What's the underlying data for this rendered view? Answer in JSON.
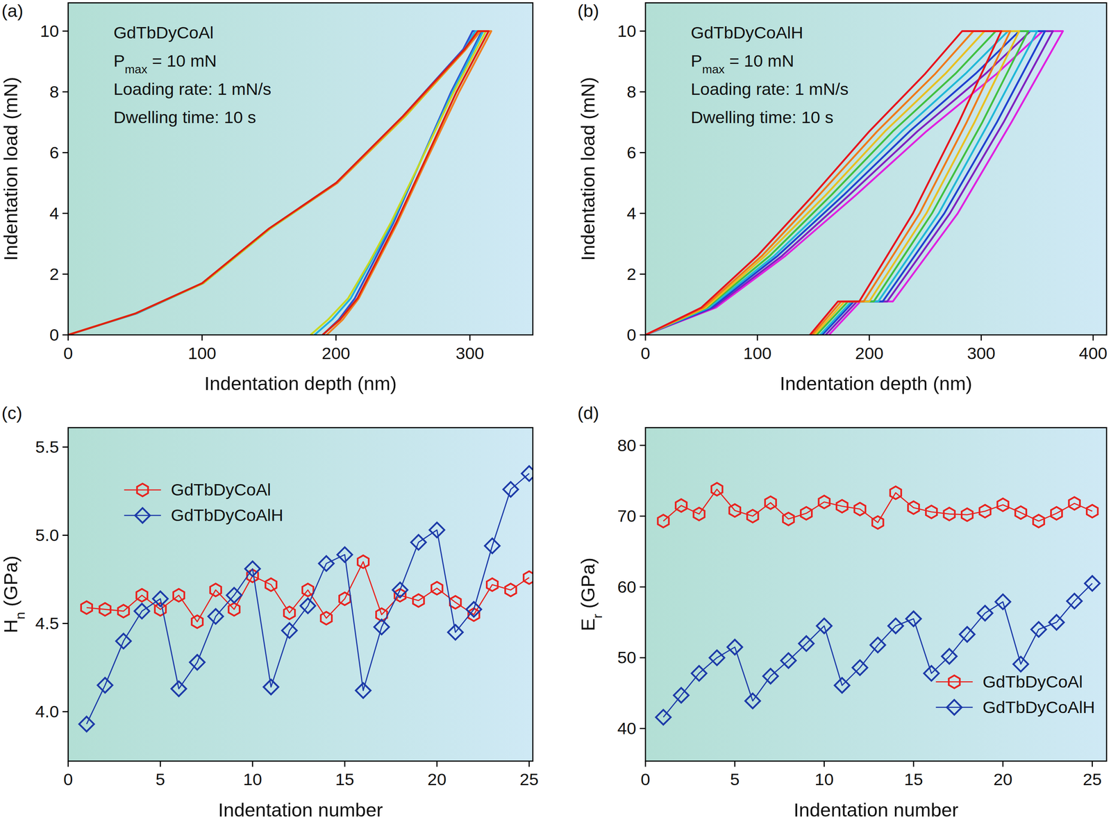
{
  "chart_data": [
    {
      "type": "line",
      "panel_label": "(a)",
      "xlabel": "Indentation depth (nm)",
      "ylabel": "Indentation load (mN)",
      "xlim": [
        0,
        347
      ],
      "ylim": [
        0,
        10.93
      ],
      "xticks": [
        0,
        100,
        200,
        300
      ],
      "yticks": [
        0,
        2,
        4,
        6,
        8,
        10
      ],
      "annotations": [
        [
          {
            "text": "GdTbDyCoAl"
          }
        ],
        [
          {
            "text": "P"
          },
          {
            "text": "max",
            "sub": true
          },
          {
            "text": " = 10 mN"
          }
        ],
        [
          {
            "text": "Loading rate: 1 mN/s"
          }
        ],
        [
          {
            "text": "Dwelling time: 10 s"
          }
        ]
      ],
      "series": [
        {
          "color": "#3050d0",
          "x": [
            0,
            50,
            100,
            150,
            200,
            250,
            295,
            302,
            309,
            286,
            262,
            243,
            228,
            214,
            202,
            190
          ],
          "values": [
            0,
            0.7,
            1.7,
            3.5,
            5.0,
            7.2,
            9.4,
            10,
            10,
            8.0,
            5.6,
            3.7,
            2.4,
            1.2,
            0.5,
            0
          ]
        },
        {
          "color": "#20b0e0",
          "x": [
            0,
            51,
            101,
            151,
            201,
            251,
            296,
            304,
            310,
            287,
            262,
            242,
            226,
            211,
            197,
            184
          ],
          "values": [
            0,
            0.7,
            1.7,
            3.5,
            5.0,
            7.2,
            9.4,
            10,
            10,
            8.0,
            5.6,
            3.7,
            2.4,
            1.2,
            0.5,
            0
          ]
        },
        {
          "color": "#c8d820",
          "x": [
            0,
            50,
            101,
            151,
            201,
            252,
            297,
            306,
            312,
            288,
            262,
            241,
            225,
            209,
            194,
            181
          ],
          "values": [
            0,
            0.7,
            1.7,
            3.5,
            5.0,
            7.2,
            9.4,
            10,
            10,
            8.0,
            5.6,
            3.7,
            2.4,
            1.2,
            0.5,
            0
          ]
        },
        {
          "color": "#f08020",
          "x": [
            0,
            50,
            100,
            150,
            201,
            251,
            297,
            308,
            316,
            292,
            266,
            246,
            231,
            217,
            205,
            193
          ],
          "values": [
            0,
            0.7,
            1.7,
            3.5,
            5.0,
            7.2,
            9.4,
            10,
            10,
            8.0,
            5.6,
            3.7,
            2.4,
            1.2,
            0.5,
            0
          ]
        },
        {
          "color": "#e02010",
          "x": [
            0,
            50,
            100,
            150,
            200,
            250,
            296,
            306,
            314,
            290,
            265,
            245,
            230,
            216,
            203,
            190
          ],
          "values": [
            0,
            0.7,
            1.7,
            3.5,
            5.0,
            7.2,
            9.4,
            10,
            10,
            8.0,
            5.6,
            3.7,
            2.4,
            1.2,
            0.5,
            0
          ]
        }
      ]
    },
    {
      "type": "line",
      "panel_label": "(b)",
      "xlabel": "Indentation depth (nm)",
      "ylabel": "Indentation load (mN)",
      "xlim": [
        0,
        412
      ],
      "ylim": [
        0,
        10.93
      ],
      "xticks": [
        0,
        100,
        200,
        300,
        400
      ],
      "yticks": [
        0,
        2,
        4,
        6,
        8,
        10
      ],
      "annotations": [
        [
          {
            "text": "GdTbDyCoAlH"
          }
        ],
        [
          {
            "text": "P"
          },
          {
            "text": "max",
            "sub": true
          },
          {
            "text": " = 10 mN"
          }
        ],
        [
          {
            "text": "Loading rate: 1 mN/s"
          }
        ],
        [
          {
            "text": "Dwelling time: 10 s"
          }
        ]
      ],
      "series": [
        {
          "color": "#e020e0",
          "x": [
            0,
            63,
            125,
            188,
            251,
            314,
            355,
            373,
            327,
            279,
            221,
            192,
            164
          ],
          "values": [
            0,
            0.9,
            2.6,
            4.6,
            6.7,
            8.6,
            10,
            10,
            7,
            4,
            1.1,
            1.1,
            0
          ]
        },
        {
          "color": "#8020c0",
          "x": [
            0,
            61,
            122,
            182,
            243,
            304,
            344,
            364,
            320,
            272,
            216,
            189,
            161
          ],
          "values": [
            0,
            0.9,
            2.6,
            4.6,
            6.7,
            8.6,
            10,
            10,
            7,
            4,
            1.1,
            1.1,
            0
          ]
        },
        {
          "color": "#2040d0",
          "x": [
            0,
            59,
            118,
            177,
            236,
            295,
            334,
            357,
            314,
            267,
            212,
            186,
            158
          ],
          "values": [
            0,
            0.9,
            2.6,
            4.6,
            6.7,
            8.6,
            10,
            10,
            7,
            4,
            1.1,
            1.1,
            0
          ]
        },
        {
          "color": "#20b8d8",
          "x": [
            0,
            57,
            115,
            172,
            229,
            286,
            324,
            350,
            307,
            262,
            208,
            184,
            156
          ],
          "values": [
            0,
            0.9,
            2.6,
            4.6,
            6.7,
            8.6,
            10,
            10,
            7,
            4,
            1.1,
            1.1,
            0
          ]
        },
        {
          "color": "#40c040",
          "x": [
            0,
            55,
            111,
            166,
            221,
            277,
            313,
            342,
            301,
            256,
            204,
            181,
            153
          ],
          "values": [
            0,
            0.9,
            2.6,
            4.6,
            6.7,
            8.6,
            10,
            10,
            7,
            4,
            1.1,
            1.1,
            0
          ]
        },
        {
          "color": "#e8c020",
          "x": [
            0,
            54,
            107,
            161,
            214,
            268,
            303,
            334,
            294,
            251,
            200,
            178,
            151
          ],
          "values": [
            0,
            0.9,
            2.6,
            4.6,
            6.7,
            8.6,
            10,
            10,
            7,
            4,
            1.1,
            1.1,
            0
          ]
        },
        {
          "color": "#f07a18",
          "x": [
            0,
            52,
            104,
            155,
            207,
            259,
            293,
            326,
            287,
            245,
            195,
            175,
            149
          ],
          "values": [
            0,
            0.9,
            2.6,
            4.6,
            6.7,
            8.6,
            10,
            10,
            7,
            4,
            1.1,
            1.1,
            0
          ]
        },
        {
          "color": "#e8141c",
          "x": [
            0,
            50,
            100,
            150,
            200,
            250,
            283,
            318,
            280,
            239,
            191,
            172,
            147
          ],
          "values": [
            0,
            0.9,
            2.6,
            4.6,
            6.7,
            8.6,
            10,
            10,
            7,
            4,
            1.1,
            1.1,
            0
          ]
        }
      ]
    },
    {
      "type": "line",
      "panel_label": "(c)",
      "xlabel": "Indentation number",
      "ylabel": [
        {
          "text": "H"
        },
        {
          "text": "n",
          "sub": true
        },
        {
          "text": " (GPa)"
        }
      ],
      "xlim": [
        0,
        25.2
      ],
      "ylim": [
        3.72,
        5.61
      ],
      "xticks": [
        0,
        5,
        10,
        15,
        20,
        25
      ],
      "yticks": [
        {
          "value": 4,
          "label": "4.0"
        },
        4.5,
        {
          "value": 5,
          "label": "5.0"
        },
        5.5
      ],
      "legend": "upper left",
      "series": [
        {
          "name": "GdTbDyCoAl",
          "color": "#e8231f",
          "marker": "hexagon",
          "x": [
            1,
            2,
            3,
            4,
            5,
            6,
            7,
            8,
            9,
            10,
            11,
            12,
            13,
            14,
            15,
            16,
            17,
            18,
            19,
            20,
            21,
            22,
            23,
            24,
            25
          ],
          "values": [
            4.59,
            4.58,
            4.57,
            4.66,
            4.58,
            4.66,
            4.51,
            4.69,
            4.58,
            4.77,
            4.72,
            4.56,
            4.69,
            4.53,
            4.64,
            4.85,
            4.55,
            4.66,
            4.63,
            4.7,
            4.62,
            4.55,
            4.72,
            4.69,
            4.76
          ]
        },
        {
          "name": "GdTbDyCoAlH",
          "color": "#1c3aa8",
          "marker": "diamond",
          "x": [
            1,
            2,
            3,
            4,
            5,
            6,
            7,
            8,
            9,
            10,
            11,
            12,
            13,
            14,
            15,
            16,
            17,
            18,
            19,
            20,
            21,
            22,
            23,
            24,
            25
          ],
          "values": [
            3.93,
            4.15,
            4.4,
            4.57,
            4.64,
            4.13,
            4.28,
            4.54,
            4.66,
            4.81,
            4.14,
            4.46,
            4.6,
            4.84,
            4.89,
            4.12,
            4.48,
            4.69,
            4.96,
            5.03,
            4.45,
            4.58,
            4.94,
            5.26,
            5.35
          ]
        }
      ]
    },
    {
      "type": "line",
      "panel_label": "(d)",
      "xlabel": "Indentation number",
      "ylabel": [
        {
          "text": "E"
        },
        {
          "text": "r",
          "sub": true
        },
        {
          "text": " (GPa)"
        }
      ],
      "xlim": [
        0,
        25.8
      ],
      "ylim": [
        35.4,
        82.5
      ],
      "xticks": [
        0,
        5,
        10,
        15,
        20,
        25
      ],
      "yticks": [
        40,
        50,
        60,
        70,
        80
      ],
      "legend": "lower right",
      "series": [
        {
          "name": "GdTbDyCoAl",
          "color": "#e8231f",
          "marker": "hexagon",
          "x": [
            1,
            2,
            3,
            4,
            5,
            6,
            7,
            8,
            9,
            10,
            11,
            12,
            13,
            14,
            15,
            16,
            17,
            18,
            19,
            20,
            21,
            22,
            23,
            24,
            25
          ],
          "values": [
            69.3,
            71.5,
            70.3,
            73.8,
            70.8,
            70.0,
            71.9,
            69.6,
            70.4,
            72.0,
            71.4,
            71.0,
            69.1,
            73.3,
            71.2,
            70.6,
            70.3,
            70.2,
            70.7,
            71.6,
            70.5,
            69.3,
            70.4,
            71.8,
            70.7
          ]
        },
        {
          "name": "GdTbDyCoAlH",
          "color": "#1c3aa8",
          "marker": "diamond",
          "x": [
            1,
            2,
            3,
            4,
            5,
            6,
            7,
            8,
            9,
            10,
            11,
            12,
            13,
            14,
            15,
            16,
            17,
            18,
            19,
            20,
            21,
            22,
            23,
            24,
            25
          ],
          "values": [
            41.6,
            44.7,
            47.8,
            50.0,
            51.5,
            43.9,
            47.4,
            49.6,
            52.0,
            54.5,
            46.1,
            48.6,
            51.8,
            54.5,
            55.5,
            47.8,
            50.2,
            53.3,
            56.3,
            57.9,
            49.1,
            54.0,
            55.0,
            58.0,
            60.5
          ]
        }
      ]
    }
  ]
}
